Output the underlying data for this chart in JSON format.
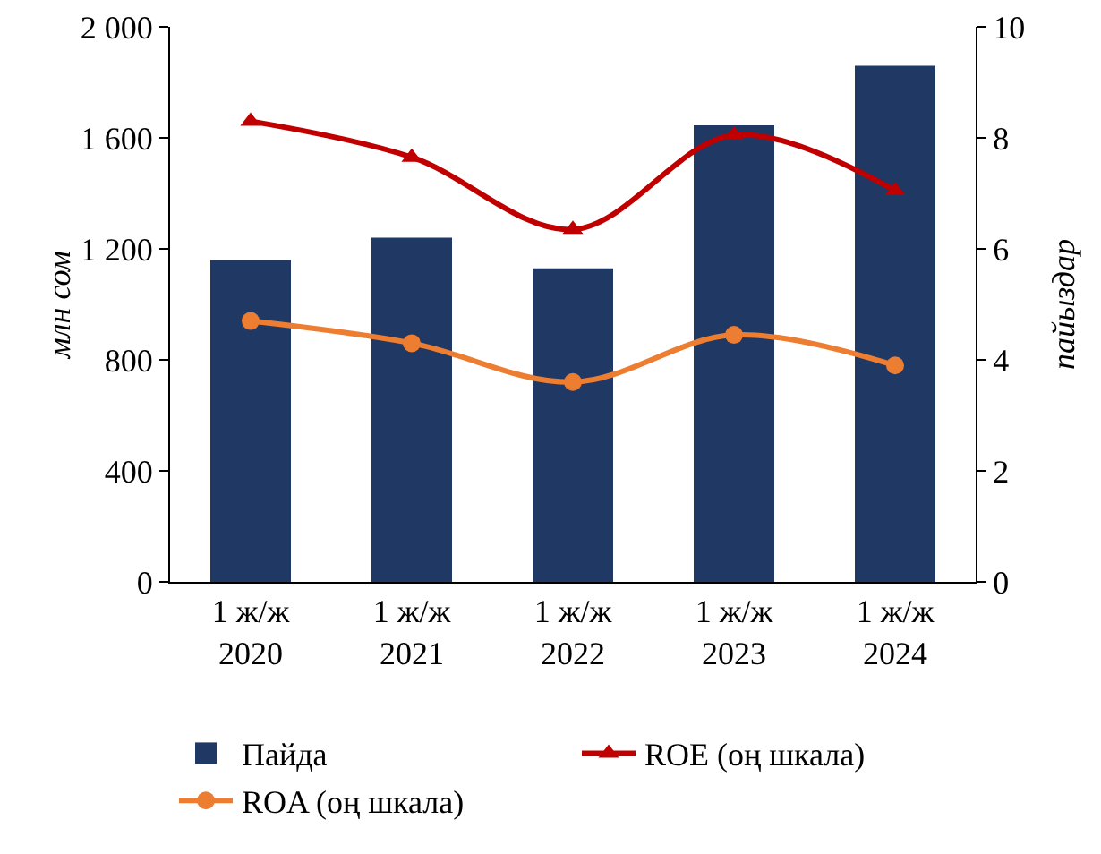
{
  "chart_data": {
    "type": "bar",
    "categories": [
      "1 ж/ж\n2020",
      "1 ж/ж\n2021",
      "1 ж/ж\n2022",
      "1 ж/ж\n2023",
      "1 ж/ж\n2024"
    ],
    "ylabel": "млн сом",
    "y2label": "пайыздар",
    "ylim": [
      0,
      2000
    ],
    "yticks": [
      0,
      {
        "value": 400,
        "label": "400"
      },
      {
        "value": 800,
        "label": "800"
      },
      {
        "value": 1200,
        "label": "1 200"
      },
      {
        "value": 1600,
        "label": "1 600"
      },
      {
        "value": 2000,
        "label": "2 000"
      }
    ],
    "y2lim": [
      0,
      10
    ],
    "y2ticks": [
      0,
      2,
      4,
      6,
      8,
      10
    ],
    "grid": false,
    "legend": "bottom",
    "series": [
      {
        "name": "Пайда",
        "color": "#1f3864",
        "values": [
          1160,
          1240,
          1130,
          1645,
          1860
        ]
      },
      {
        "name": "ROE (оң шкала)",
        "type": "line",
        "axis": "y2",
        "marker": "triangle",
        "color": "#c00000",
        "values": [
          8.3,
          7.65,
          6.35,
          8.05,
          7.05
        ]
      },
      {
        "name": "ROA (оң шкала)",
        "type": "line",
        "axis": "y2",
        "marker": "circle",
        "color": "#ed7d31",
        "values": [
          4.7,
          4.3,
          3.6,
          4.45,
          3.9
        ]
      }
    ]
  }
}
